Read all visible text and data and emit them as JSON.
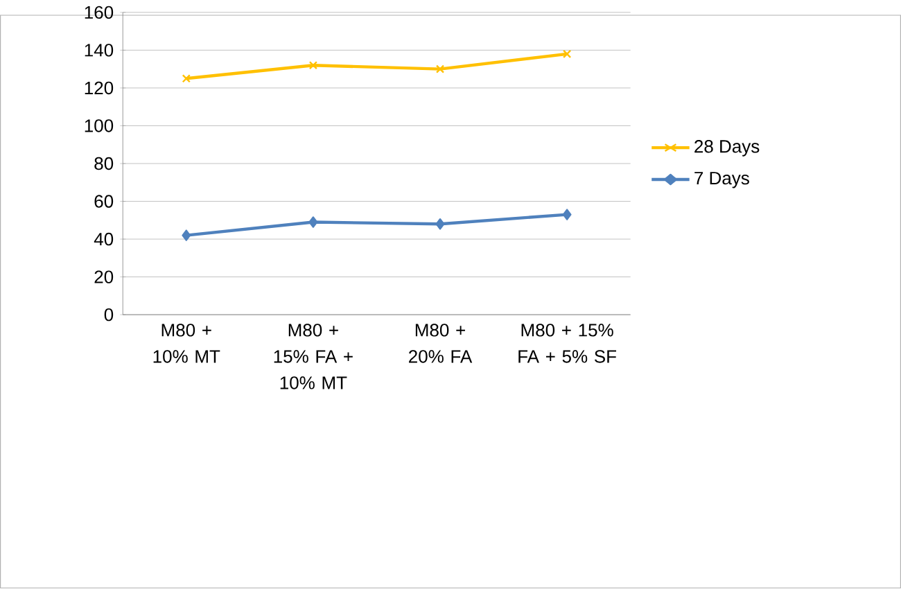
{
  "chart_data": {
    "type": "line",
    "categories": [
      "M80 + 10% MT",
      "M80 + 15% FA + 10% MT",
      "M80 + 20% FA",
      "M80 + 15% FA + 5% SF"
    ],
    "series": [
      {
        "name": "28 Days",
        "color": "#ffc000",
        "marker": "cross",
        "values": [
          125,
          132,
          130,
          138
        ]
      },
      {
        "name": "7 Days",
        "color": "#4f81bd",
        "marker": "diamond",
        "values": [
          42,
          49,
          48,
          53
        ]
      }
    ],
    "ylim": [
      0,
      160
    ],
    "yticks": [
      0,
      20,
      40,
      60,
      80,
      100,
      120,
      140,
      160
    ],
    "grid": "y",
    "legend": "right",
    "line_style": "solid"
  }
}
